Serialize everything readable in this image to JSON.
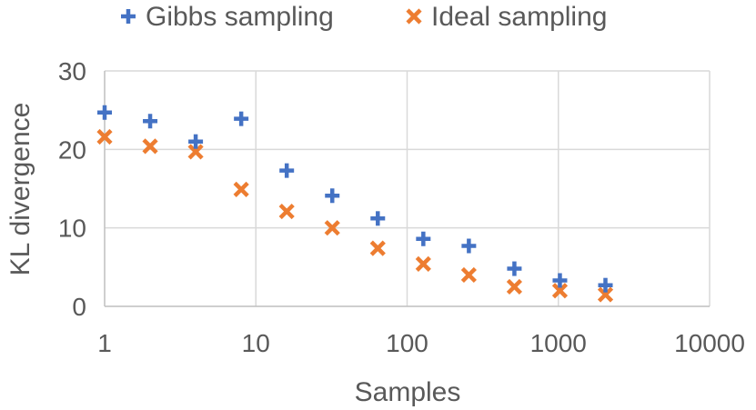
{
  "chart_data": {
    "type": "scatter",
    "xlabel": "Samples",
    "ylabel": "KL divergence",
    "x_scale": "log",
    "xlim": [
      1,
      10000
    ],
    "ylim": [
      0,
      30
    ],
    "x_ticks": [
      1,
      10,
      100,
      1000,
      10000
    ],
    "x_tick_labels": [
      "1",
      "10",
      "100",
      "1000",
      "10000"
    ],
    "y_ticks": [
      0,
      10,
      20,
      30
    ],
    "y_tick_labels": [
      "0",
      "10",
      "20",
      "30"
    ],
    "grid": true,
    "legend_position": "top",
    "series": [
      {
        "name": "Gibbs sampling",
        "marker": "plus",
        "color": "#4472C4",
        "x": [
          1,
          2,
          4,
          8,
          16,
          32,
          64,
          128,
          256,
          512,
          1024,
          2048
        ],
        "y": [
          24.7,
          23.6,
          21.0,
          23.9,
          17.3,
          14.1,
          11.2,
          8.6,
          7.7,
          4.8,
          3.3,
          2.7
        ]
      },
      {
        "name": "Ideal sampling",
        "marker": "x",
        "color": "#ED7D31",
        "x": [
          1,
          2,
          4,
          8,
          16,
          32,
          64,
          128,
          256,
          512,
          1024,
          2048
        ],
        "y": [
          21.6,
          20.4,
          19.7,
          14.9,
          12.1,
          10.0,
          7.4,
          5.4,
          4.0,
          2.5,
          2.0,
          1.5
        ]
      }
    ]
  }
}
